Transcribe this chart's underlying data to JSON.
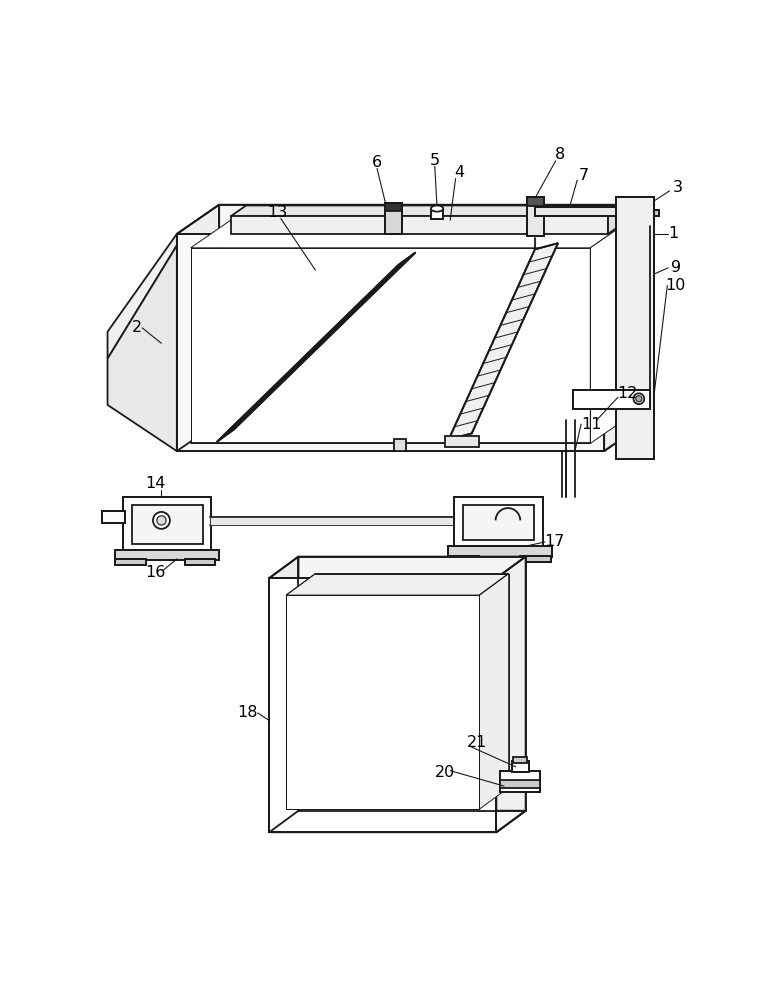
{
  "background_color": "#ffffff",
  "line_color": "#1a1a1a",
  "line_width": 1.3,
  "thin_lw": 0.7,
  "figsize": [
    7.83,
    10.0
  ],
  "dpi": 100,
  "label_fontsize": 11.5
}
